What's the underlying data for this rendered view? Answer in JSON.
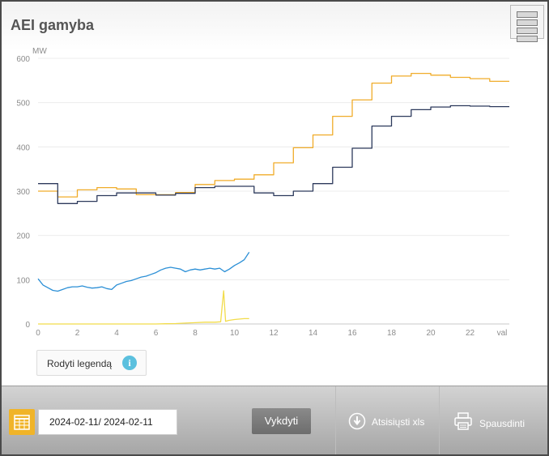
{
  "title": "AEI gamyba",
  "y_unit": "MW",
  "x_unit": "val",
  "legend_button": {
    "label": "Rodyti legendą",
    "icon": "info-icon"
  },
  "date_range": "2024-02-11/ 2024-02-11",
  "run_button": "Vykdyti",
  "download_button": "Atsisiųsti xls",
  "print_button": "Spausdinti",
  "colors": {
    "forecast_orange": "#f0ac2a",
    "actual_navy": "#2d3a5c",
    "measured_blue": "#2b8fd6",
    "solar_yellow": "#f2dc4a"
  },
  "chart_data": {
    "type": "line",
    "xlabel": "val",
    "ylabel": "MW",
    "xlim": [
      0,
      24
    ],
    "ylim": [
      0,
      600
    ],
    "xticks": [
      0,
      2,
      4,
      6,
      8,
      10,
      12,
      14,
      16,
      18,
      20,
      22
    ],
    "yticks": [
      0,
      100,
      200,
      300,
      400,
      500,
      600
    ],
    "grid": true,
    "series": [
      {
        "step": true,
        "color": "#f0ac2a",
        "x": [
          0,
          1,
          2,
          3,
          4,
          5,
          6,
          7,
          8,
          9,
          10,
          11,
          12,
          13,
          14,
          15,
          16,
          17,
          18,
          19,
          20,
          21,
          22,
          23,
          24
        ],
        "y": [
          300,
          287,
          303,
          308,
          305,
          292,
          292,
          297,
          315,
          324,
          327,
          337,
          364,
          398,
          427,
          469,
          506,
          544,
          560,
          566,
          562,
          557,
          554,
          548,
          548
        ]
      },
      {
        "step": true,
        "color": "#2d3a5c",
        "x": [
          0,
          1,
          2,
          3,
          4,
          5,
          6,
          7,
          8,
          9,
          10,
          11,
          12,
          13,
          14,
          15,
          16,
          17,
          18,
          19,
          20,
          21,
          22,
          23,
          24
        ],
        "y": [
          317,
          272,
          277,
          290,
          296,
          296,
          291,
          295,
          308,
          311,
          311,
          296,
          290,
          300,
          317,
          354,
          397,
          447,
          469,
          484,
          490,
          493,
          492,
          491,
          491
        ]
      },
      {
        "step": false,
        "color": "#2b8fd6",
        "x": [
          0,
          0.25,
          0.5,
          0.75,
          1,
          1.25,
          1.5,
          1.75,
          2,
          2.25,
          2.5,
          2.75,
          3,
          3.25,
          3.5,
          3.75,
          4,
          4.25,
          4.5,
          4.75,
          5,
          5.25,
          5.5,
          5.75,
          6,
          6.25,
          6.5,
          6.75,
          7,
          7.25,
          7.5,
          7.75,
          8,
          8.25,
          8.5,
          8.75,
          9,
          9.25,
          9.5,
          9.75,
          10,
          10.25,
          10.5,
          10.75
        ],
        "y": [
          102,
          88,
          82,
          76,
          74,
          78,
          82,
          84,
          84,
          86,
          83,
          81,
          82,
          84,
          80,
          78,
          88,
          92,
          96,
          98,
          102,
          106,
          108,
          112,
          116,
          122,
          126,
          128,
          126,
          124,
          118,
          122,
          124,
          122,
          124,
          126,
          124,
          126,
          118,
          124,
          132,
          138,
          145,
          162
        ]
      },
      {
        "step": false,
        "color": "#f2dc4a",
        "x": [
          0,
          6,
          6.5,
          7,
          7.5,
          8,
          8.5,
          9,
          9.3,
          9.45,
          9.55,
          9.7,
          10,
          10.5,
          10.75
        ],
        "y": [
          0,
          0,
          0.5,
          1,
          2,
          3,
          4,
          4,
          5,
          75,
          6,
          8,
          10,
          12,
          12
        ]
      }
    ]
  }
}
